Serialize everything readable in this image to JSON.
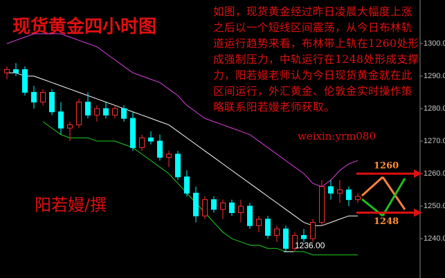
{
  "chart_data": {
    "type": "candlestick",
    "title": "现货黄金四小时图",
    "author": "阳若嫚/撰",
    "description": "如图，现货黄金经过昨日凌晨大幅度上涨之后以一个短线区间震荡，从今日布林轨道运行趋势来看，布林带上轨在1260处形成强制压力，中轨运行在1248处形成支撑力，阳若嫚老师认为今日现货黄金就在此区间运行，外汇黄金、伦敦金实时操作策略联系阳若嫚老师获取。",
    "wechat": "weixin:yrm080",
    "ylim": [
      1227.9,
      1313.4
    ],
    "yticks": [
      {
        "value": 1240,
        "label": "1240.00"
      },
      {
        "value": 1250,
        "label": "1250.00"
      },
      {
        "value": 1260,
        "label": "1260.00"
      },
      {
        "value": 1270,
        "label": "1270.00"
      },
      {
        "value": 1280,
        "label": "1280.00"
      },
      {
        "value": 1290,
        "label": "1290.00"
      },
      {
        "value": 1300,
        "label": "1300.00"
      }
    ],
    "up_color": "#ff3030",
    "down_color": "#00ffff",
    "candles": {
      "open": [
        1291,
        1292,
        1292,
        1285,
        1282,
        1285,
        1279,
        1274,
        1275,
        1282,
        1278,
        1280,
        1278,
        1280,
        1277,
        1268,
        1271,
        1270,
        1265,
        1266,
        1259,
        1254,
        1247,
        1252,
        1249,
        1251,
        1248,
        1250,
        1244,
        1246,
        1241,
        1243,
        1237,
        1241,
        1240,
        1245,
        1256,
        1254,
        1255,
        1252
      ],
      "high": [
        1293,
        1294,
        1293,
        1287,
        1286,
        1286,
        1282,
        1276,
        1283,
        1285,
        1281,
        1282,
        1281,
        1281,
        1279,
        1272,
        1273,
        1272,
        1267,
        1267,
        1261,
        1256,
        1253,
        1253,
        1252,
        1252,
        1252,
        1251,
        1247,
        1247,
        1244,
        1244,
        1242,
        1243,
        1246,
        1258,
        1258,
        1258,
        1256,
        1254
      ],
      "low": [
        1289,
        1290,
        1284,
        1280,
        1281,
        1278,
        1272,
        1270,
        1274,
        1277,
        1276,
        1277,
        1277,
        1276,
        1267,
        1267,
        1269,
        1264,
        1262,
        1258,
        1253,
        1245,
        1246,
        1248,
        1246,
        1247,
        1245,
        1243,
        1242,
        1240,
        1239,
        1236,
        1236,
        1239,
        1239,
        1244,
        1252,
        1251,
        1250,
        1251
      ],
      "close": [
        1292,
        1291,
        1285,
        1282,
        1285,
        1279,
        1274,
        1275,
        1282,
        1278,
        1280,
        1278,
        1280,
        1277,
        1268,
        1271,
        1270,
        1265,
        1266,
        1259,
        1254,
        1247,
        1252,
        1249,
        1251,
        1248,
        1250,
        1244,
        1246,
        1241,
        1243,
        1237,
        1241,
        1240,
        1245,
        1256,
        1254,
        1255,
        1252,
        1253
      ]
    },
    "bands": [
      {
        "color": "#e040e0",
        "values": [
          1300,
          1301,
          1302,
          1303,
          1303,
          1303,
          1303,
          1302,
          1301,
          1300,
          1299,
          1297,
          1295,
          1293,
          1291,
          1290,
          1289,
          1288,
          1286,
          1284,
          1281,
          1279,
          1277,
          1276,
          1275,
          1274,
          1273,
          1272,
          1270,
          1268,
          1266,
          1264,
          1262,
          1260,
          1257,
          1256,
          1258,
          1261,
          1263,
          1264
        ]
      },
      {
        "color": "#ffffff",
        "values": [
          1291,
          1291,
          1290,
          1290,
          1289,
          1288,
          1287,
          1286,
          1285,
          1284,
          1283,
          1282,
          1281,
          1280,
          1279,
          1278,
          1277,
          1276,
          1275,
          1273,
          1271,
          1269,
          1267,
          1265,
          1263,
          1261,
          1259,
          1257,
          1255,
          1253,
          1251,
          1249,
          1247,
          1245,
          1244,
          1244,
          1245,
          1246,
          1247,
          1247
        ]
      },
      {
        "color": "#20d020",
        "values": [
          null,
          null,
          null,
          null,
          1276,
          1274,
          1272,
          1271,
          1271,
          1271,
          1270,
          1270,
          1270,
          1269,
          1268,
          1266,
          1264,
          1262,
          1260,
          1257,
          1254,
          1251,
          1248,
          1245,
          1242,
          1240,
          1239,
          1238,
          1238,
          1237,
          1237,
          1236,
          1236,
          1236,
          1235,
          1235,
          1235,
          1235,
          1235,
          1235
        ]
      }
    ],
    "low_mark": {
      "value": 1236,
      "label": "1236.00"
    },
    "levels": [
      {
        "value": 1260,
        "label": "1260"
      },
      {
        "value": 1248,
        "label": "1248"
      }
    ]
  }
}
